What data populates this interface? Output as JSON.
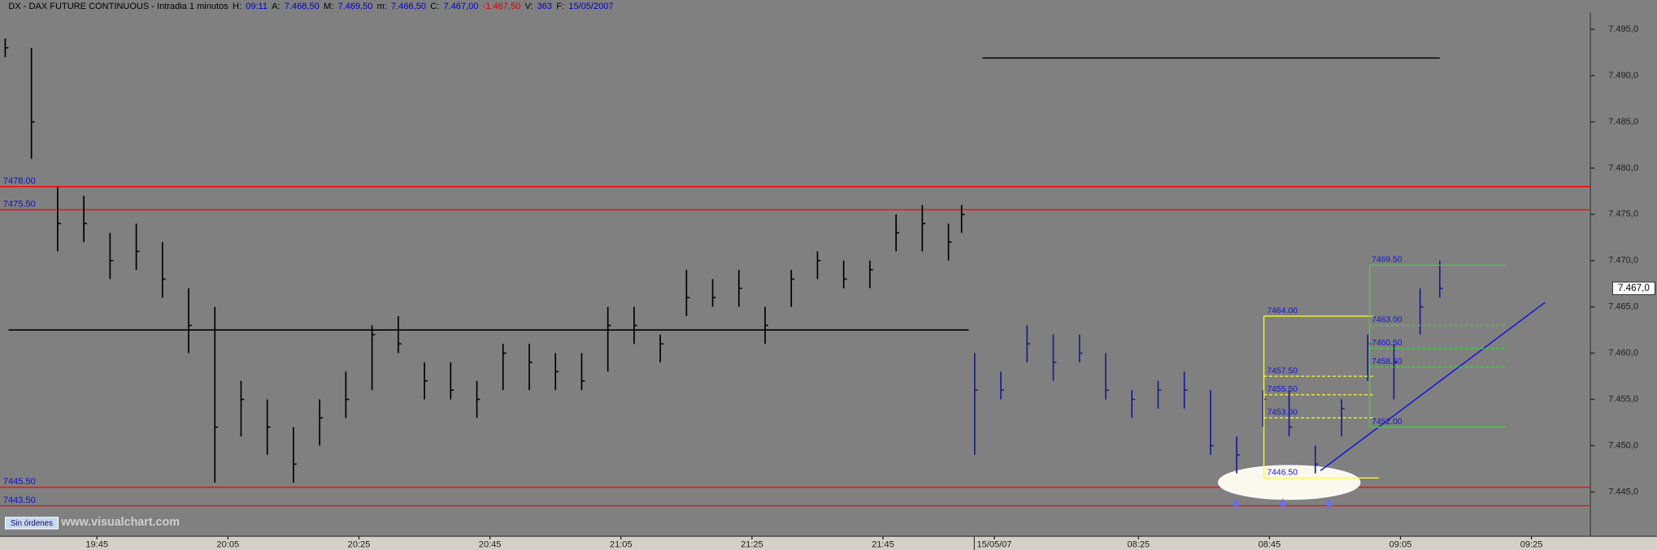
{
  "chart_data": {
    "type": "ohlc",
    "header": [
      {
        "text": "DX - DAX FUTURE CONTINUOUS - Intradia 1 minutos",
        "color": "#000000"
      },
      {
        "text": "H:",
        "color": "#000000"
      },
      {
        "text": "09:11",
        "color": "#0000c8"
      },
      {
        "text": "A:",
        "color": "#000000"
      },
      {
        "text": "7.468,50",
        "color": "#0000c8"
      },
      {
        "text": "M:",
        "color": "#000000"
      },
      {
        "text": "7.469,50",
        "color": "#0000c8"
      },
      {
        "text": "m:",
        "color": "#000000"
      },
      {
        "text": "7.466,50",
        "color": "#0000c8"
      },
      {
        "text": "C:",
        "color": "#000000"
      },
      {
        "text": "7.467,00",
        "color": "#0000c8"
      },
      {
        "text": "-1.467,50",
        "color": "#e00000"
      },
      {
        "text": "V:",
        "color": "#000000"
      },
      {
        "text": "363",
        "color": "#0000c8"
      },
      {
        "text": "F:",
        "color": "#000000"
      },
      {
        "text": "15/05/2007",
        "color": "#0000c8"
      }
    ],
    "xlim": [
      -0.8,
      242
    ],
    "ylim": [
      7440.2,
      7496.8
    ],
    "xticks": [
      {
        "value": 14,
        "label": "19:45"
      },
      {
        "value": 34,
        "label": "20:05"
      },
      {
        "value": 54,
        "label": "20:25"
      },
      {
        "value": 74,
        "label": "20:45"
      },
      {
        "value": 94,
        "label": "21:05"
      },
      {
        "value": 114,
        "label": "21:25"
      },
      {
        "value": 134,
        "label": "21:45"
      },
      {
        "value": 151,
        "label": "15/05/07"
      },
      {
        "value": 173,
        "label": "08:25"
      },
      {
        "value": 193,
        "label": "08:45"
      },
      {
        "value": 213,
        "label": "09:05"
      },
      {
        "value": 233,
        "label": "09:25"
      }
    ],
    "yticks": [
      {
        "value": 7445,
        "label": "7.445,0"
      },
      {
        "value": 7450,
        "label": "7.450,0"
      },
      {
        "value": 7455,
        "label": "7.455,0"
      },
      {
        "value": 7460,
        "label": "7.460,0"
      },
      {
        "value": 7465,
        "label": "7.465,0"
      },
      {
        "value": 7470,
        "label": "7.470,0"
      },
      {
        "value": 7475,
        "label": "7.475,0"
      },
      {
        "value": 7480,
        "label": "7.480,0"
      },
      {
        "value": 7485,
        "label": "7.485,0"
      },
      {
        "value": 7490,
        "label": "7.490,0"
      },
      {
        "value": 7495,
        "label": "7.495,0"
      }
    ],
    "series": [
      {
        "color": "#000000",
        "x": [
          0,
          4,
          8,
          12,
          16,
          20,
          24,
          28,
          32,
          36,
          40,
          44,
          48,
          52,
          56,
          60,
          64,
          68,
          72,
          76,
          80,
          84,
          88,
          92,
          96,
          100,
          104,
          108,
          112,
          116,
          120,
          124,
          128,
          132,
          136,
          140,
          144,
          146
        ],
        "high": [
          7494,
          7493,
          7478,
          7477,
          7473,
          7474,
          7472,
          7467,
          7465,
          7457,
          7455,
          7452,
          7455,
          7458,
          7463,
          7464,
          7459,
          7459,
          7457,
          7461,
          7461,
          7460,
          7460,
          7465,
          7465,
          7462,
          7469,
          7468,
          7469,
          7465,
          7469,
          7471,
          7470,
          7470,
          7475,
          7476,
          7474,
          7476
        ],
        "low": [
          7492,
          7481,
          7471,
          7472,
          7468,
          7469,
          7466,
          7460,
          7446,
          7451,
          7449,
          7446,
          7450,
          7453,
          7456,
          7460,
          7455,
          7455,
          7453,
          7456,
          7456,
          7456,
          7456,
          7458,
          7461,
          7459,
          7464,
          7465,
          7465,
          7461,
          7465,
          7468,
          7467,
          7467,
          7471,
          7471,
          7470,
          7473
        ],
        "close": [
          7493,
          7485,
          7474,
          7474,
          7470,
          7471,
          7468,
          7463,
          7452,
          7455,
          7452,
          7448,
          7453,
          7455,
          7462,
          7461,
          7457,
          7456,
          7455,
          7460,
          7459,
          7458,
          7457,
          7463,
          7463,
          7461,
          7466,
          7466,
          7467,
          7463,
          7468,
          7470,
          7468,
          7469,
          7473,
          7474,
          7472,
          7475
        ]
      },
      {
        "color": "#1c1c8c",
        "x": [
          148,
          152,
          156,
          160,
          164,
          168,
          172,
          176,
          180,
          184,
          188,
          192,
          196,
          200,
          204,
          208,
          212,
          216,
          219
        ],
        "high": [
          7460,
          7458,
          7463,
          7462,
          7462,
          7460,
          7456,
          7457,
          7458,
          7456,
          7451,
          7456,
          7456,
          7450,
          7455,
          7462,
          7461,
          7467,
          7470
        ],
        "low": [
          7449,
          7455,
          7459,
          7457,
          7459,
          7455,
          7453,
          7454,
          7454,
          7449,
          7447,
          7452,
          7451,
          7447,
          7451,
          7457,
          7455,
          7462,
          7466
        ],
        "close": [
          7456,
          7456,
          7461,
          7459,
          7460,
          7456,
          7455,
          7456,
          7456,
          7450,
          7449,
          7455,
          7452,
          7448,
          7454,
          7461,
          7459,
          7465,
          7467
        ]
      }
    ],
    "hlines": [
      {
        "value": 7478,
        "label": "7478.00",
        "color": "#ff0000"
      },
      {
        "value": 7475.5,
        "label": "7475.50",
        "color": "#ff0000"
      },
      {
        "value": 7445.5,
        "label": "7445.50",
        "color": "#ff0000"
      },
      {
        "value": 7443.5,
        "label": "7443.50",
        "color": "#ff0000"
      }
    ],
    "segments": [
      {
        "x": [
          0.5,
          147.1
        ],
        "y": [
          7462.5,
          7462.5
        ],
        "color": "#000000"
      },
      {
        "x": [
          149.2,
          219
        ],
        "y": [
          7491.9,
          7491.9
        ],
        "color": "#000000"
      },
      {
        "x": [
          200.8,
          235.1
        ],
        "y": [
          7447.3,
          7465.5
        ],
        "color": "#1a1ad0"
      }
    ],
    "retracements": [
      {
        "color": "#ffff33",
        "levels": [
          {
            "value": 7464,
            "label": "7464.00"
          },
          {
            "value": 7457.5,
            "label": "7457.50"
          },
          {
            "value": 7455.5,
            "label": "7455.50"
          },
          {
            "value": 7453,
            "label": "7453.00"
          },
          {
            "value": 7446.5,
            "label": "7446.50"
          }
        ]
      },
      {
        "color": "#33dd33",
        "levels": [
          {
            "value": 7469.5,
            "label": "7469.50"
          },
          {
            "value": 7463,
            "label": "7463.00"
          },
          {
            "value": 7460.5,
            "label": "7460.50"
          },
          {
            "value": 7458.5,
            "label": "7458.50"
          },
          {
            "value": 7452,
            "label": "7452.00"
          }
        ]
      }
    ],
    "last_price": {
      "value": 7467,
      "label": "7.467,0"
    },
    "orders_button": "Sin órdenes",
    "watermark": "www.visualchart.com"
  }
}
